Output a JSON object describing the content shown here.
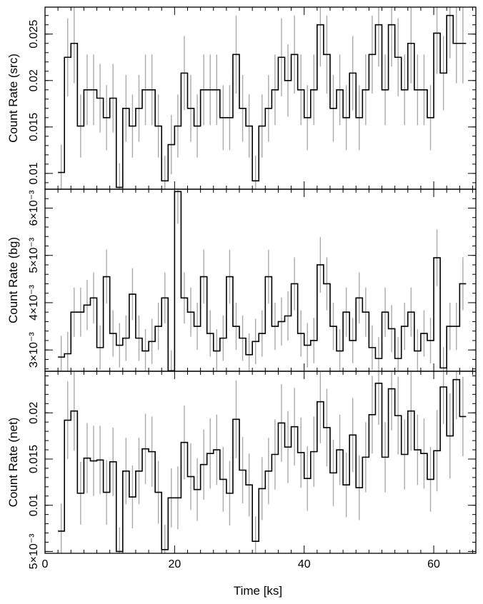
{
  "chart_data": [
    {
      "type": "line",
      "name": "src-panel",
      "ylabel": "Count Rate (src)",
      "ylim": [
        0.0083,
        0.0279
      ],
      "yticks": [
        0.01,
        0.015,
        0.02,
        0.025
      ],
      "ytick_labels": [
        "0.01",
        "0.015",
        "0.02",
        "0.025"
      ],
      "bin_width": 1.0,
      "x": [
        2,
        3,
        4,
        5,
        6,
        7,
        8,
        9,
        10,
        11,
        12,
        13,
        14,
        15,
        16,
        17,
        18,
        19,
        20,
        21,
        22,
        23,
        24,
        25,
        26,
        27,
        28,
        29,
        30,
        31,
        32,
        33,
        34,
        35,
        36,
        37,
        38,
        39,
        40,
        41,
        42,
        43,
        44,
        45,
        46,
        47,
        48,
        49,
        50,
        51,
        52,
        53,
        54,
        55,
        56,
        57,
        58,
        59,
        60,
        61,
        62,
        63,
        64
      ],
      "values": [
        0.0101,
        0.0225,
        0.024,
        0.0151,
        0.019,
        0.019,
        0.0181,
        0.016,
        0.0181,
        0.0085,
        0.017,
        0.0151,
        0.017,
        0.019,
        0.019,
        0.0151,
        0.0092,
        0.0131,
        0.0151,
        0.0208,
        0.017,
        0.0151,
        0.019,
        0.019,
        0.019,
        0.016,
        0.016,
        0.0228,
        0.017,
        0.0151,
        0.0092,
        0.0151,
        0.017,
        0.019,
        0.0225,
        0.02,
        0.0228,
        0.019,
        0.016,
        0.019,
        0.026,
        0.0228,
        0.017,
        0.019,
        0.016,
        0.0208,
        0.016,
        0.019,
        0.0228,
        0.026,
        0.019,
        0.026,
        0.0225,
        0.019,
        0.024,
        0.019,
        0.019,
        0.016,
        0.0251,
        0.0208,
        0.027,
        0.024,
        0.024
      ],
      "errors": [
        0.003,
        0.0042,
        0.0043,
        0.0034,
        0.0038,
        0.0038,
        0.0037,
        0.0035,
        0.0037,
        0.0026,
        0.0036,
        0.0034,
        0.0036,
        0.0038,
        0.0038,
        0.0034,
        0.0027,
        0.0032,
        0.0034,
        0.004,
        0.0036,
        0.0034,
        0.0038,
        0.0038,
        0.0038,
        0.0035,
        0.0035,
        0.0042,
        0.0036,
        0.0034,
        0.0027,
        0.0034,
        0.0036,
        0.0038,
        0.0042,
        0.0039,
        0.0042,
        0.0038,
        0.0035,
        0.0038,
        0.0045,
        0.0042,
        0.0036,
        0.0038,
        0.0035,
        0.004,
        0.0035,
        0.0038,
        0.0042,
        0.0045,
        0.0038,
        0.0045,
        0.0042,
        0.0038,
        0.0043,
        0.0038,
        0.0038,
        0.0035,
        0.0044,
        0.004,
        0.0046,
        0.0043,
        0.0043
      ]
    },
    {
      "type": "line",
      "name": "bg-panel",
      "ylabel": "Count Rate (bg)",
      "ylim": [
        0.00255,
        0.0064
      ],
      "yticks": [
        0.003,
        0.004,
        0.005,
        0.006
      ],
      "ytick_labels": [
        "3×10⁻³",
        "4×10⁻³",
        "5×10⁻³",
        "6×10⁻³"
      ],
      "bin_width": 1.0,
      "x": [
        2,
        3,
        4,
        5,
        6,
        7,
        8,
        9,
        10,
        11,
        12,
        13,
        14,
        15,
        16,
        17,
        18,
        19,
        20,
        21,
        22,
        23,
        24,
        25,
        26,
        27,
        28,
        29,
        30,
        31,
        32,
        33,
        34,
        35,
        36,
        37,
        38,
        39,
        40,
        41,
        42,
        43,
        44,
        45,
        46,
        47,
        48,
        49,
        50,
        51,
        52,
        53,
        54,
        55,
        56,
        57,
        58,
        59,
        60,
        61,
        62,
        63,
        64
      ],
      "values": [
        0.00285,
        0.00292,
        0.0038,
        0.0038,
        0.00395,
        0.0041,
        0.00305,
        0.00455,
        0.00335,
        0.0031,
        0.00325,
        0.00418,
        0.00325,
        0.00298,
        0.00318,
        0.0035,
        0.0041,
        0.00256,
        0.00635,
        0.0041,
        0.0038,
        0.0035,
        0.00455,
        0.00335,
        0.00298,
        0.00325,
        0.00455,
        0.0035,
        0.00325,
        0.0029,
        0.00318,
        0.00335,
        0.00455,
        0.0035,
        0.0036,
        0.00372,
        0.0044,
        0.00335,
        0.0031,
        0.0032,
        0.0048,
        0.0044,
        0.0035,
        0.00298,
        0.0038,
        0.0032,
        0.0041,
        0.0038,
        0.00305,
        0.00282,
        0.0038,
        0.00345,
        0.00282,
        0.0035,
        0.0038,
        0.00298,
        0.00335,
        0.0032,
        0.00495,
        0.00262,
        0.0035,
        0.0035,
        0.0044
      ],
      "errors": [
        0.00045,
        0.00046,
        0.00052,
        0.00052,
        0.00053,
        0.00054,
        0.00047,
        0.00057,
        0.00049,
        0.00047,
        0.00048,
        0.00055,
        0.00048,
        0.00046,
        0.00048,
        0.0005,
        0.00054,
        0.00043,
        0.00068,
        0.00054,
        0.00052,
        0.0005,
        0.00057,
        0.00049,
        0.00046,
        0.00048,
        0.00057,
        0.0005,
        0.00048,
        0.00045,
        0.00048,
        0.00049,
        0.00057,
        0.0005,
        0.00051,
        0.00052,
        0.00056,
        0.00049,
        0.00047,
        0.00048,
        0.00059,
        0.00056,
        0.0005,
        0.00046,
        0.00052,
        0.00048,
        0.00054,
        0.00052,
        0.00047,
        0.00045,
        0.00052,
        0.0005,
        0.00045,
        0.0005,
        0.00052,
        0.00046,
        0.00049,
        0.00048,
        0.0006,
        0.00044,
        0.0005,
        0.0005,
        0.00056
      ]
    },
    {
      "type": "line",
      "name": "net-panel",
      "ylabel": "Count Rate (net)",
      "ylim": [
        0.0048,
        0.0245
      ],
      "yticks": [
        0.005,
        0.01,
        0.015,
        0.02
      ],
      "ytick_labels": [
        "5×10⁻³",
        "0.01",
        "0.015",
        "0.02"
      ],
      "bin_width": 1.0,
      "x": [
        2,
        3,
        4,
        5,
        6,
        7,
        8,
        9,
        10,
        11,
        12,
        13,
        14,
        15,
        16,
        17,
        18,
        19,
        20,
        21,
        22,
        23,
        24,
        25,
        26,
        27,
        28,
        29,
        30,
        31,
        32,
        33,
        34,
        35,
        36,
        37,
        38,
        39,
        40,
        41,
        42,
        43,
        44,
        45,
        46,
        47,
        48,
        49,
        50,
        51,
        52,
        53,
        54,
        55,
        56,
        57,
        58,
        59,
        60,
        61,
        62,
        63,
        64
      ],
      "values": [
        0.0072,
        0.0192,
        0.0202,
        0.0113,
        0.0151,
        0.0148,
        0.0149,
        0.0114,
        0.0147,
        0.005,
        0.0137,
        0.0109,
        0.0137,
        0.0161,
        0.0158,
        0.0114,
        0.0052,
        0.0108,
        0.0108,
        0.0168,
        0.0131,
        0.0117,
        0.0144,
        0.0156,
        0.016,
        0.0128,
        0.0113,
        0.0193,
        0.0138,
        0.0122,
        0.0061,
        0.0118,
        0.0137,
        0.0155,
        0.0189,
        0.0163,
        0.0185,
        0.0157,
        0.0129,
        0.0158,
        0.0212,
        0.0184,
        0.0135,
        0.016,
        0.0122,
        0.0176,
        0.0119,
        0.0152,
        0.0198,
        0.0232,
        0.0152,
        0.0226,
        0.0197,
        0.0155,
        0.0202,
        0.016,
        0.0156,
        0.0128,
        0.0159,
        0.0228,
        0.0175,
        0.0236,
        0.0196
      ],
      "errors": [
        0.003,
        0.0042,
        0.0043,
        0.0034,
        0.0038,
        0.0038,
        0.0037,
        0.0035,
        0.0037,
        0.0026,
        0.0036,
        0.0034,
        0.0036,
        0.0038,
        0.0038,
        0.0034,
        0.0027,
        0.0032,
        0.0034,
        0.004,
        0.0036,
        0.0034,
        0.0038,
        0.0038,
        0.0038,
        0.0035,
        0.0035,
        0.0042,
        0.0036,
        0.0034,
        0.0027,
        0.0034,
        0.0036,
        0.0038,
        0.0042,
        0.0039,
        0.0042,
        0.0038,
        0.0035,
        0.0038,
        0.0045,
        0.0042,
        0.0036,
        0.0038,
        0.0035,
        0.004,
        0.0035,
        0.0038,
        0.0042,
        0.0045,
        0.0038,
        0.0045,
        0.0042,
        0.0038,
        0.0043,
        0.0038,
        0.0038,
        0.0035,
        0.0044,
        0.004,
        0.0046,
        0.0043,
        0.0043
      ]
    }
  ],
  "shared_x": {
    "xlabel": "Time [ks]",
    "xlim": [
      0,
      66.5
    ],
    "xticks": [
      0,
      20,
      40,
      60
    ],
    "xtick_labels": [
      "0",
      "20",
      "40",
      "60"
    ],
    "minor_step": 2
  },
  "colors": {
    "step": "#000000",
    "error_bar": "#aaaaaa",
    "frame": "#000000"
  }
}
